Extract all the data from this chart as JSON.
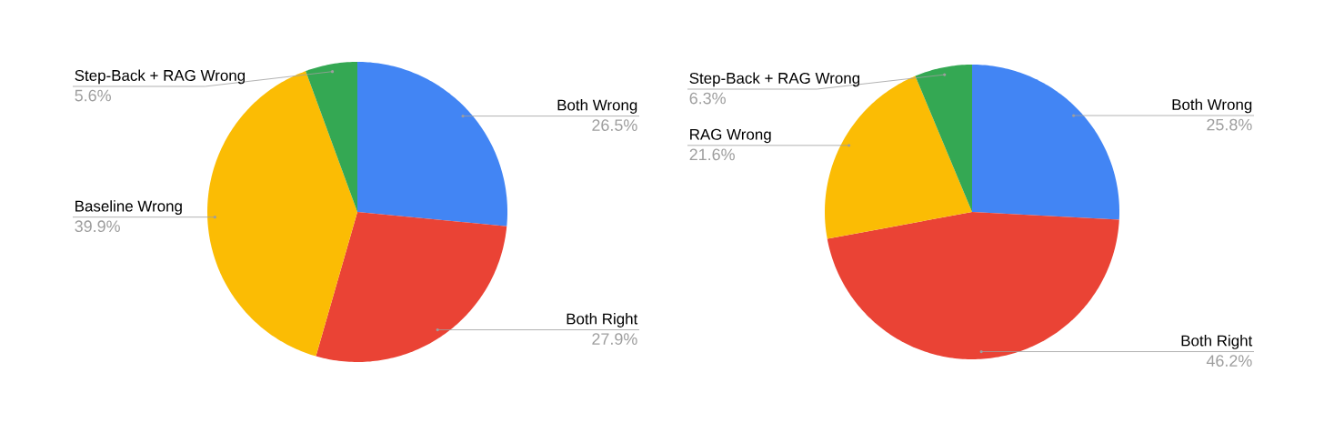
{
  "chart_data": [
    {
      "type": "pie",
      "categories": [
        "Both Wrong",
        "Both Right",
        "Baseline Wrong",
        "Step-Back + RAG Wrong"
      ],
      "values": [
        26.5,
        27.9,
        39.9,
        5.6
      ],
      "value_labels": [
        "26.5%",
        "27.9%",
        "39.9%",
        "5.6%"
      ],
      "colors": [
        "#4285f4",
        "#ea4335",
        "#fbbc04",
        "#34a853"
      ]
    },
    {
      "type": "pie",
      "categories": [
        "Both Wrong",
        "Both Right",
        "RAG Wrong",
        "Step-Back + RAG Wrong"
      ],
      "values": [
        25.8,
        46.2,
        21.6,
        6.3
      ],
      "value_labels": [
        "25.8%",
        "46.2%",
        "21.6%",
        "6.3%"
      ],
      "colors": [
        "#4285f4",
        "#ea4335",
        "#fbbc04",
        "#34a853"
      ]
    }
  ]
}
